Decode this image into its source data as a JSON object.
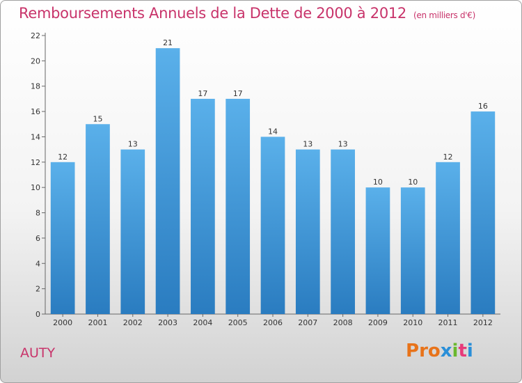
{
  "header": {
    "title": "Remboursements Annuels de la Dette de 2000 à 2012",
    "unit": "(en milliers d'€)"
  },
  "footer": {
    "commune": "AUTY",
    "logo": "Proxiti",
    "logo_colors": [
      "#e8731a",
      "#e8731a",
      "#e8731a",
      "#2a8fd8",
      "#6ab82e",
      "#e83a7a",
      "#2a8fd8"
    ]
  },
  "colors": {
    "bar_top": "#5ab0ea",
    "bar_bottom": "#2a7cc0",
    "title": "#c8336a"
  },
  "chart_data": {
    "type": "bar",
    "title": "Remboursements Annuels de la Dette de 2000 à 2012",
    "categories": [
      "2000",
      "2001",
      "2002",
      "2003",
      "2004",
      "2005",
      "2006",
      "2007",
      "2008",
      "2009",
      "2010",
      "2011",
      "2012"
    ],
    "values": [
      12,
      15,
      13,
      21,
      17,
      17,
      14,
      13,
      13,
      10,
      10,
      12,
      16
    ],
    "ylim": [
      0,
      22
    ],
    "yticks": [
      0,
      2,
      4,
      6,
      8,
      10,
      12,
      14,
      16,
      18,
      20,
      22
    ],
    "xlabel": "",
    "ylabel": "",
    "grid": false,
    "legend": "none"
  }
}
